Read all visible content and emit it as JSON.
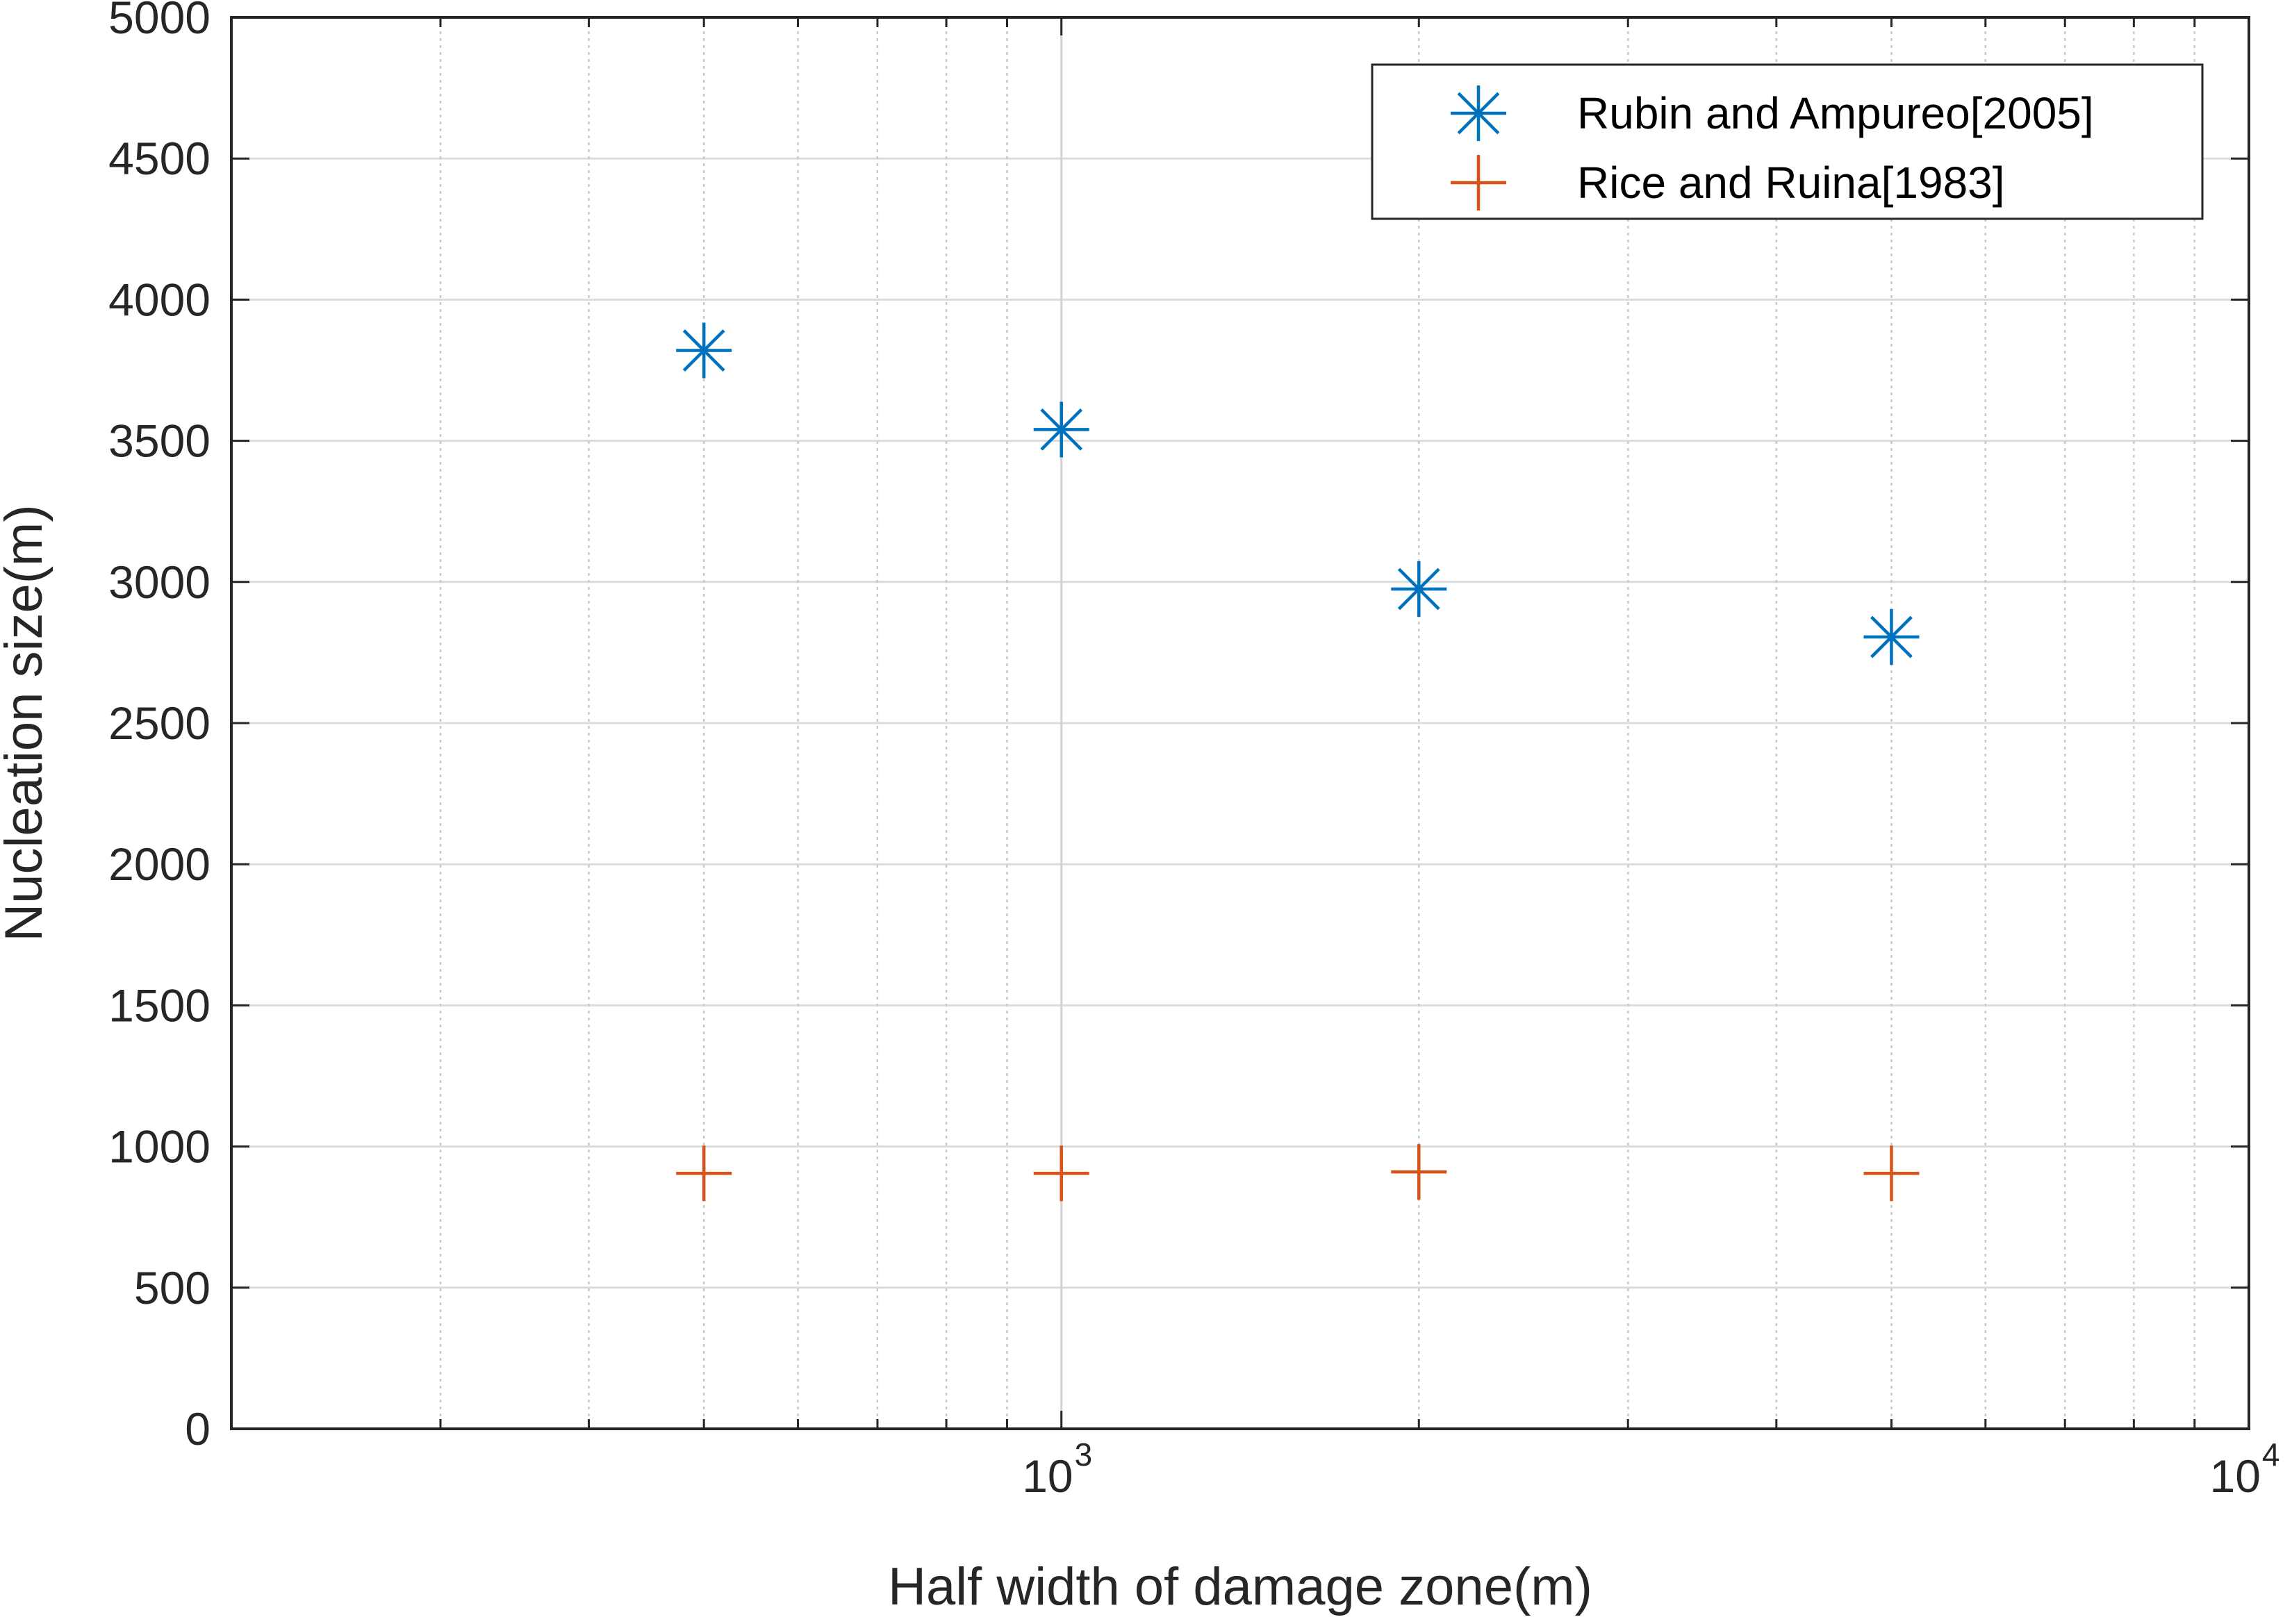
{
  "chart_data": {
    "type": "scatter",
    "xlabel": "Half width of damage zone(m)",
    "ylabel": "Nucleation size(m)",
    "xscale": "log",
    "xlim": [
      200,
      10000
    ],
    "ylim": [
      0,
      5000
    ],
    "yticks": [
      0,
      500,
      1000,
      1500,
      2000,
      2500,
      3000,
      3500,
      4000,
      4500,
      5000
    ],
    "xticks": [
      {
        "value": 1000,
        "base": "10",
        "exp": "3"
      },
      {
        "value": 10000,
        "base": "10",
        "exp": "4"
      }
    ],
    "grid": true,
    "legend_position": "top-right",
    "series": [
      {
        "name": "Rubin and Ampureo[2005]",
        "marker": "asterisk",
        "color": "#0072BD",
        "x": [
          500,
          1000,
          2000,
          5000
        ],
        "y": [
          3820,
          3540,
          2975,
          2805
        ]
      },
      {
        "name": "Rice and Ruina[1983]",
        "marker": "plus",
        "color": "#D95319",
        "x": [
          500,
          1000,
          2000,
          5000
        ],
        "y": [
          905,
          905,
          910,
          905
        ]
      }
    ]
  }
}
